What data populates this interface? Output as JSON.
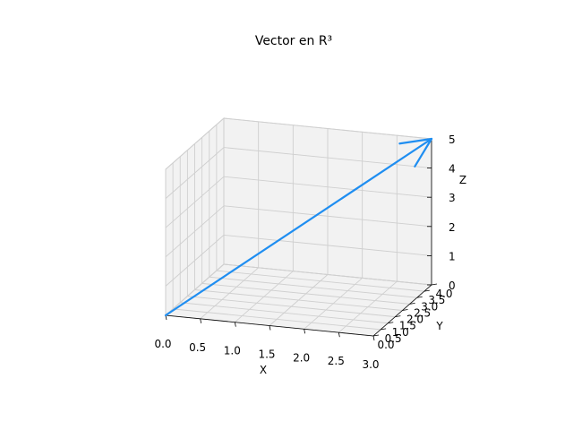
{
  "chart_data": {
    "type": "3d-vector",
    "title": "Vector en R³",
    "xlabel": "X",
    "ylabel": "Y",
    "zlabel": "Z",
    "xlim": [
      0,
      3
    ],
    "ylim": [
      0,
      4
    ],
    "zlim": [
      0,
      5
    ],
    "xticks": [
      "0.0",
      "0.5",
      "1.0",
      "1.5",
      "2.0",
      "2.5",
      "3.0"
    ],
    "yticks": [
      "0.0",
      "0.5",
      "1.0",
      "1.5",
      "2.0",
      "2.5",
      "3.0",
      "3.5",
      "4.0"
    ],
    "zticks": [
      "0",
      "1",
      "2",
      "3",
      "4",
      "5"
    ],
    "grid": true,
    "vector": {
      "origin": [
        0,
        0,
        0
      ],
      "components": [
        3,
        4,
        5
      ],
      "color": "#1f8ef1"
    }
  }
}
